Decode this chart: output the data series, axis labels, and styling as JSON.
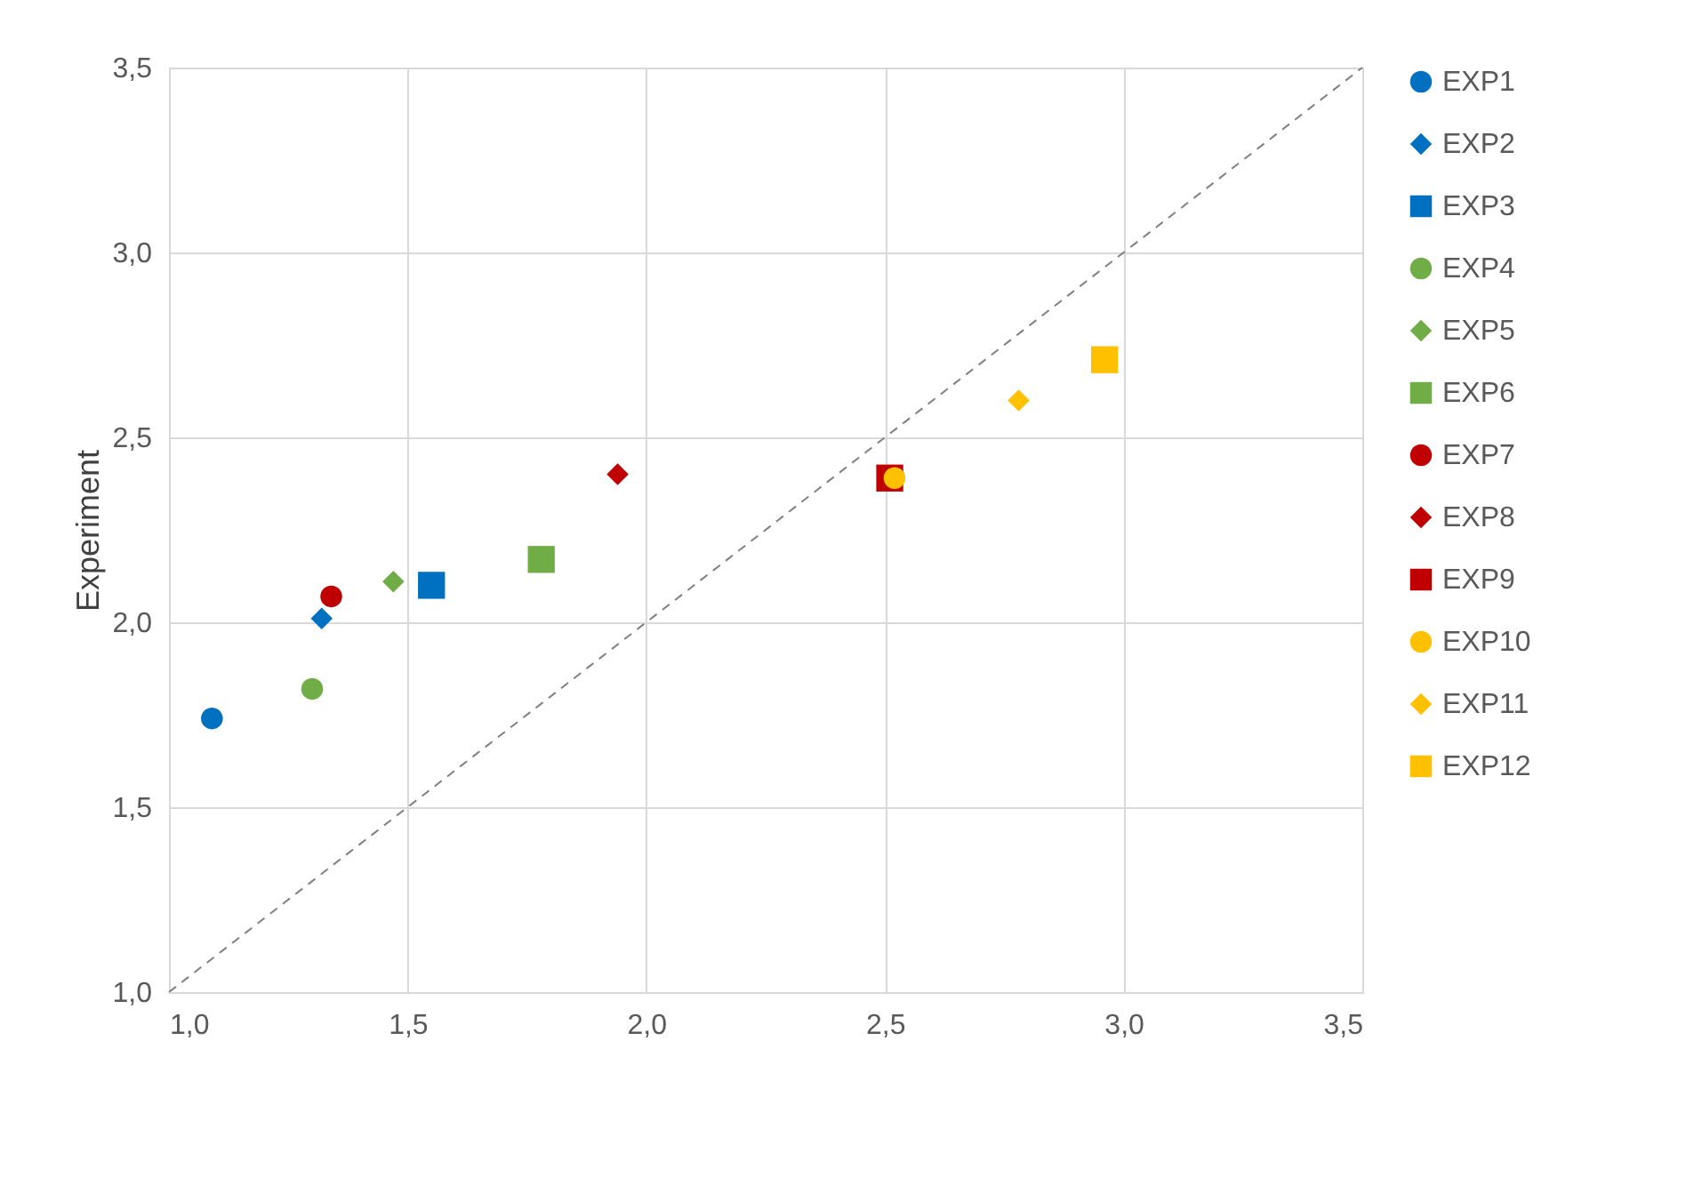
{
  "chart_data": {
    "type": "scatter",
    "ylabel": "Experiment",
    "legend": "right",
    "grid": true,
    "xlim": [
      1,
      3.5
    ],
    "ylim": [
      1,
      3.5
    ],
    "xticks": [
      {
        "value": 1,
        "label": "1,0"
      },
      {
        "value": 1.5,
        "label": "1,5"
      },
      {
        "value": 2,
        "label": "2,0"
      },
      {
        "value": 2.5,
        "label": "2,5"
      },
      {
        "value": 3,
        "label": "3,0"
      },
      {
        "value": 3.5,
        "label": "3,5"
      }
    ],
    "yticks": [
      {
        "value": 1,
        "label": "1,0"
      },
      {
        "value": 1.5,
        "label": "1,5"
      },
      {
        "value": 2,
        "label": "2,0"
      },
      {
        "value": 2.5,
        "label": "2,5"
      },
      {
        "value": 3,
        "label": "3,0"
      },
      {
        "value": 3.5,
        "label": "3,5"
      }
    ],
    "series": [
      {
        "type": "line",
        "x": [
          1,
          3.5
        ],
        "values": [
          1,
          3.5
        ],
        "color": "#7f7f7f",
        "line_style": "dashed"
      },
      {
        "name": "EXP1",
        "color": "#0070c0",
        "marker": "circle",
        "x": [
          1.09
        ],
        "values": [
          1.74
        ]
      },
      {
        "name": "EXP2",
        "color": "#0070c0",
        "marker": "diamond",
        "x": [
          1.32
        ],
        "values": [
          2.01
        ]
      },
      {
        "name": "EXP3",
        "color": "#0070c0",
        "marker": "square",
        "x": [
          1.55
        ],
        "values": [
          2.1
        ]
      },
      {
        "name": "EXP4",
        "color": "#70ad47",
        "marker": "circle",
        "x": [
          1.3
        ],
        "values": [
          1.82
        ]
      },
      {
        "name": "EXP5",
        "color": "#70ad47",
        "marker": "diamond",
        "x": [
          1.47
        ],
        "values": [
          2.11
        ]
      },
      {
        "name": "EXP6",
        "color": "#70ad47",
        "marker": "square",
        "x": [
          1.78
        ],
        "values": [
          2.17
        ]
      },
      {
        "name": "EXP7",
        "color": "#c00000",
        "marker": "circle",
        "x": [
          1.34
        ],
        "values": [
          2.07
        ]
      },
      {
        "name": "EXP8",
        "color": "#c00000",
        "marker": "diamond",
        "x": [
          1.94
        ],
        "values": [
          2.4
        ]
      },
      {
        "name": "EXP9",
        "color": "#c00000",
        "marker": "square",
        "x": [
          2.51
        ],
        "values": [
          2.39
        ]
      },
      {
        "name": "EXP10",
        "color": "#ffc000",
        "marker": "circle",
        "x": [
          2.52
        ],
        "values": [
          2.39
        ]
      },
      {
        "name": "EXP11",
        "color": "#ffc000",
        "marker": "diamond",
        "x": [
          2.78
        ],
        "values": [
          2.6
        ]
      },
      {
        "name": "EXP12",
        "color": "#ffc000",
        "marker": "square",
        "x": [
          2.96
        ],
        "values": [
          2.71
        ]
      }
    ]
  }
}
